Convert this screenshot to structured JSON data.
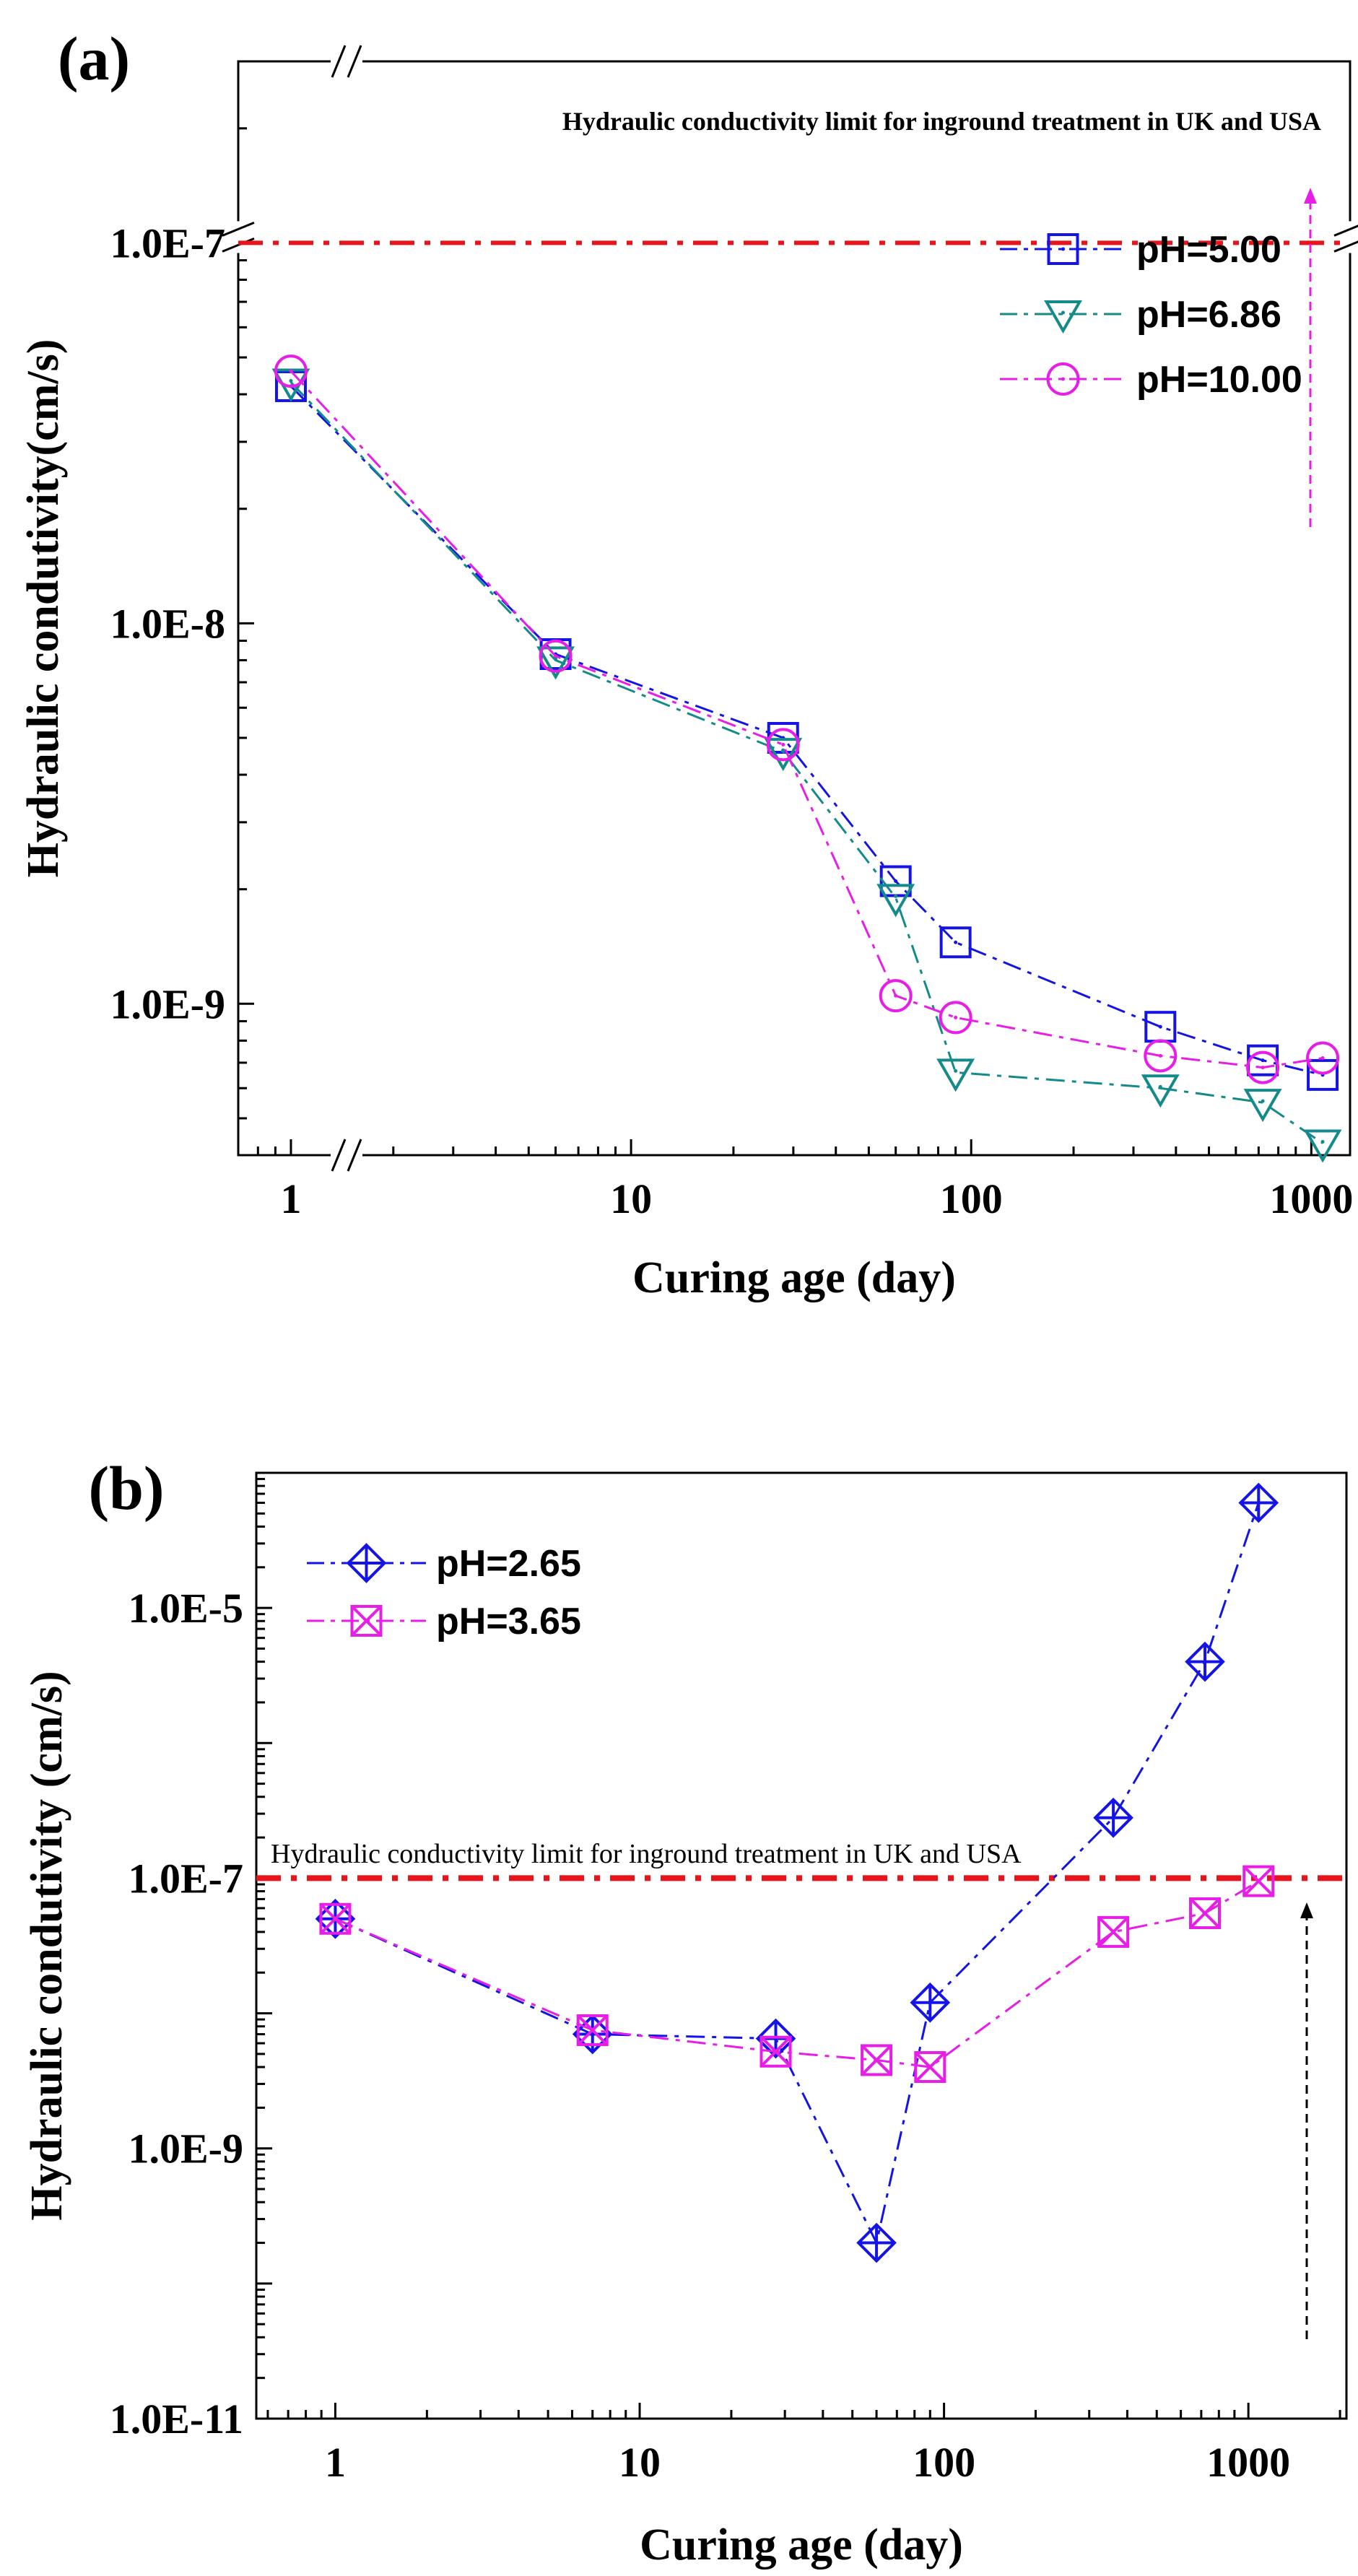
{
  "chart_data": [
    {
      "type": "line",
      "panel_label": "(a)",
      "xscale": "log",
      "yscale": "log",
      "xlim": [
        0.7,
        1300
      ],
      "ylim": [
        4e-10,
        3e-07
      ],
      "xticks": [
        1,
        10,
        100,
        1000
      ],
      "xtick_labels": [
        "1",
        "10",
        "100",
        "1000"
      ],
      "yticks": [
        1e-09,
        1e-08,
        1e-07
      ],
      "ytick_labels": [
        "1.0E-9",
        "1.0E-8",
        "1.0E-7"
      ],
      "xlabel": "Curing age (day)",
      "ylabel": "Hydraulic condutivity(cm/s)",
      "axis_breaks": "left-top and left-bottom",
      "grid": false,
      "legend_position": "top-right",
      "reference_line": {
        "y": 1e-07,
        "color": "#e8141c",
        "style": "dash-dot",
        "text": "Hydraulic conductivity limit for inground treatment in UK and USA"
      },
      "series": [
        {
          "name": "pH=5.00",
          "color": "#1414e6",
          "marker": "square",
          "x": [
            1,
            6,
            28,
            60,
            90,
            360,
            720,
            1080
          ],
          "y": [
            4.2e-08,
            8.3e-09,
            5e-09,
            2.1e-09,
            1.45e-09,
            8.7e-10,
            7.1e-10,
            6.5e-10
          ]
        },
        {
          "name": "pH=6.86",
          "color": "#158a8a",
          "marker": "triangle-down",
          "x": [
            1,
            6,
            28,
            60,
            90,
            360,
            720,
            1080
          ],
          "y": [
            4.3e-08,
            8e-09,
            4.6e-09,
            1.9e-09,
            6.6e-10,
            6e-10,
            5.5e-10,
            4.3e-10
          ]
        },
        {
          "name": "pH=10.00",
          "color": "#e61ee6",
          "marker": "circle",
          "x": [
            1,
            6,
            28,
            60,
            90,
            360,
            720,
            1080
          ],
          "y": [
            4.6e-08,
            8.2e-09,
            4.8e-09,
            1.05e-09,
            9.2e-10,
            7.3e-10,
            6.8e-10,
            7.2e-10
          ]
        }
      ]
    },
    {
      "type": "line",
      "panel_label": "(b)",
      "xscale": "log",
      "yscale": "log",
      "xlim": [
        0.55,
        2100
      ],
      "ylim": [
        1e-11,
        0.0001
      ],
      "xticks": [
        1,
        10,
        100,
        1000
      ],
      "xtick_labels": [
        "1",
        "10",
        "100",
        "1000"
      ],
      "yticks": [
        1e-11,
        1e-09,
        1e-07,
        1e-05
      ],
      "ytick_labels": [
        "1.0E-11",
        "1.0E-9",
        "1.0E-7",
        "1.0E-5"
      ],
      "xlabel": "Curing age (day)",
      "ylabel": "Hydraulic condutivity (cm/s)",
      "grid": false,
      "legend_position": "top-left",
      "reference_line": {
        "y": 1e-07,
        "color": "#e8141c",
        "style": "dash-dot",
        "text": "Hydraulic conductivity limit for inground treatment in UK and USA"
      },
      "series": [
        {
          "name": "pH=2.65",
          "color": "#1414e6",
          "marker": "diamond-plus",
          "x": [
            1,
            7,
            28,
            60,
            90,
            360,
            720,
            1080
          ],
          "y": [
            5e-08,
            7e-09,
            6.5e-09,
            2e-10,
            1.2e-08,
            2.8e-07,
            4e-06,
            6e-05
          ]
        },
        {
          "name": "pH=3.65",
          "color": "#e61ee6",
          "marker": "square-x",
          "x": [
            1,
            7,
            28,
            60,
            90,
            360,
            720,
            1080
          ],
          "y": [
            5e-08,
            7.5e-09,
            5.2e-09,
            4.5e-09,
            4e-09,
            4e-08,
            5.5e-08,
            9.5e-08
          ]
        }
      ]
    }
  ]
}
